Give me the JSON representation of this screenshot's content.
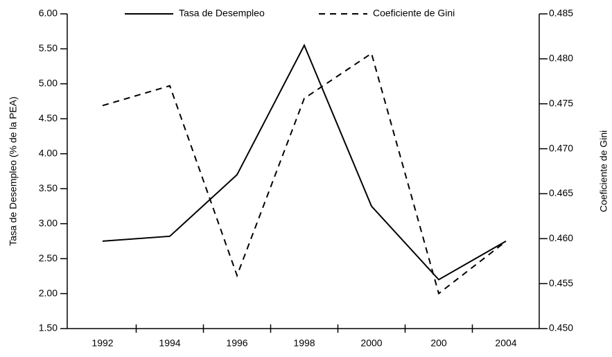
{
  "chart_data": {
    "type": "line",
    "categories": [
      "1992",
      "1994",
      "1996",
      "1998",
      "2000",
      "200",
      "2004"
    ],
    "y_label": "Tasa de Desempleo (% de la PEA)",
    "y2_label": "Coeficiente de Gini",
    "series": [
      {
        "name": "Tasa de Desempleo",
        "color": "#000000",
        "style": "solid",
        "values": [
          2.75,
          2.82,
          3.7,
          5.55,
          3.25,
          2.2,
          2.75
        ]
      },
      {
        "name": "Coeficiente de Gini",
        "color": "#000000",
        "style": "dashed",
        "axis": "y2",
        "values": [
          0.4748,
          0.477,
          0.4559,
          0.4756,
          0.4806,
          0.4539,
          0.4597
        ]
      }
    ],
    "ylim": [
      1.5,
      6.0
    ],
    "yticks": [
      {
        "value": 1.5,
        "label": "1.50"
      },
      {
        "value": 2.0,
        "label": "2.00"
      },
      {
        "value": 2.5,
        "label": "2.50"
      },
      {
        "value": 3.0,
        "label": "3.00"
      },
      {
        "value": 3.5,
        "label": "3.50"
      },
      {
        "value": 4.0,
        "label": "4.00"
      },
      {
        "value": 4.5,
        "label": "4.50"
      },
      {
        "value": 5.0,
        "label": "5.00"
      },
      {
        "value": 5.5,
        "label": "5.50"
      },
      {
        "value": 6.0,
        "label": "6.00"
      }
    ],
    "y2lim": [
      0.45,
      0.485
    ],
    "y2ticks": [
      {
        "value": 0.45,
        "label": "0.450"
      },
      {
        "value": 0.455,
        "label": "0.455"
      },
      {
        "value": 0.46,
        "label": "0.460"
      },
      {
        "value": 0.465,
        "label": "0.465"
      },
      {
        "value": 0.47,
        "label": "0.470"
      },
      {
        "value": 0.475,
        "label": "0.475"
      },
      {
        "value": 0.48,
        "label": "0.480"
      },
      {
        "value": 0.485,
        "label": "0.485"
      }
    ],
    "grid": false,
    "legend": "top"
  }
}
